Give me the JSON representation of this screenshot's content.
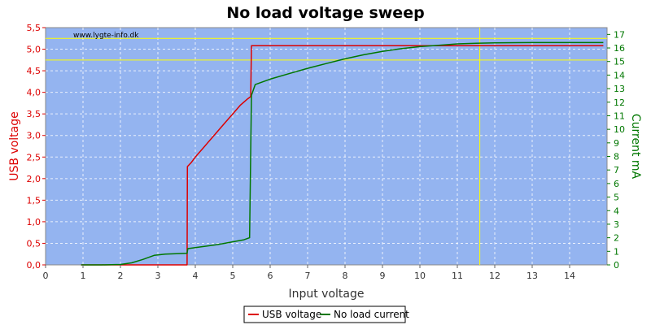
{
  "chart_data": {
    "type": "line",
    "title": "No load voltage sweep",
    "watermark": "www.lygte-info.dk",
    "xlabel": "Input voltage",
    "ylabel": "USB voltage",
    "y2label": "Current mA",
    "xlim": [
      0,
      15
    ],
    "ylim": [
      0,
      5.5
    ],
    "y2lim": [
      0,
      17.5
    ],
    "x_ticks": [
      "0",
      "1",
      "2",
      "3",
      "4",
      "5",
      "6",
      "7",
      "8",
      "9",
      "10",
      "11",
      "12",
      "13",
      "14"
    ],
    "y_ticks": [
      "0,0",
      "0,5",
      "1,0",
      "1,5",
      "2,0",
      "2,5",
      "3,0",
      "3,5",
      "4,0",
      "4,5",
      "5,0",
      "5,5"
    ],
    "y2_ticks": [
      "0",
      "1",
      "2",
      "3",
      "4",
      "5",
      "6",
      "7",
      "8",
      "9",
      "10",
      "11",
      "12",
      "13",
      "14",
      "15",
      "16",
      "17"
    ],
    "grid": true,
    "background": "#94b4f0",
    "legend_position": "bottom-center",
    "reference_lines": {
      "horizontal": [
        5.25,
        4.75
      ],
      "vertical": [
        11.6
      ],
      "color": "#ffff00"
    },
    "series": [
      {
        "name": "USB voltage",
        "axis": "left",
        "color": "#dd0000",
        "points": [
          [
            0.95,
            0.0
          ],
          [
            3.78,
            0.0
          ],
          [
            3.79,
            2.28
          ],
          [
            3.9,
            2.38
          ],
          [
            4.0,
            2.5
          ],
          [
            4.2,
            2.7
          ],
          [
            4.5,
            3.0
          ],
          [
            4.8,
            3.3
          ],
          [
            5.0,
            3.5
          ],
          [
            5.2,
            3.7
          ],
          [
            5.4,
            3.85
          ],
          [
            5.48,
            3.9
          ],
          [
            5.5,
            5.08
          ],
          [
            6.0,
            5.08
          ],
          [
            8.0,
            5.08
          ],
          [
            10.0,
            5.08
          ],
          [
            12.0,
            5.08
          ],
          [
            14.9,
            5.08
          ]
        ]
      },
      {
        "name": "No load current",
        "axis": "right",
        "color": "#007700",
        "points": [
          [
            0.95,
            0.0
          ],
          [
            1.5,
            0.0
          ],
          [
            2.0,
            0.03
          ],
          [
            2.3,
            0.15
          ],
          [
            2.6,
            0.4
          ],
          [
            2.9,
            0.7
          ],
          [
            3.2,
            0.8
          ],
          [
            3.78,
            0.85
          ],
          [
            3.8,
            1.2
          ],
          [
            4.2,
            1.35
          ],
          [
            4.6,
            1.5
          ],
          [
            5.0,
            1.7
          ],
          [
            5.3,
            1.85
          ],
          [
            5.45,
            2.0
          ],
          [
            5.5,
            12.5
          ],
          [
            5.6,
            13.3
          ],
          [
            6.0,
            13.7
          ],
          [
            6.5,
            14.1
          ],
          [
            7.0,
            14.5
          ],
          [
            7.5,
            14.85
          ],
          [
            8.0,
            15.2
          ],
          [
            8.5,
            15.5
          ],
          [
            9.0,
            15.75
          ],
          [
            9.5,
            15.95
          ],
          [
            10.0,
            16.1
          ],
          [
            10.5,
            16.2
          ],
          [
            11.0,
            16.3
          ],
          [
            11.5,
            16.35
          ],
          [
            12.0,
            16.38
          ],
          [
            13.0,
            16.4
          ],
          [
            14.9,
            16.4
          ]
        ]
      }
    ]
  }
}
